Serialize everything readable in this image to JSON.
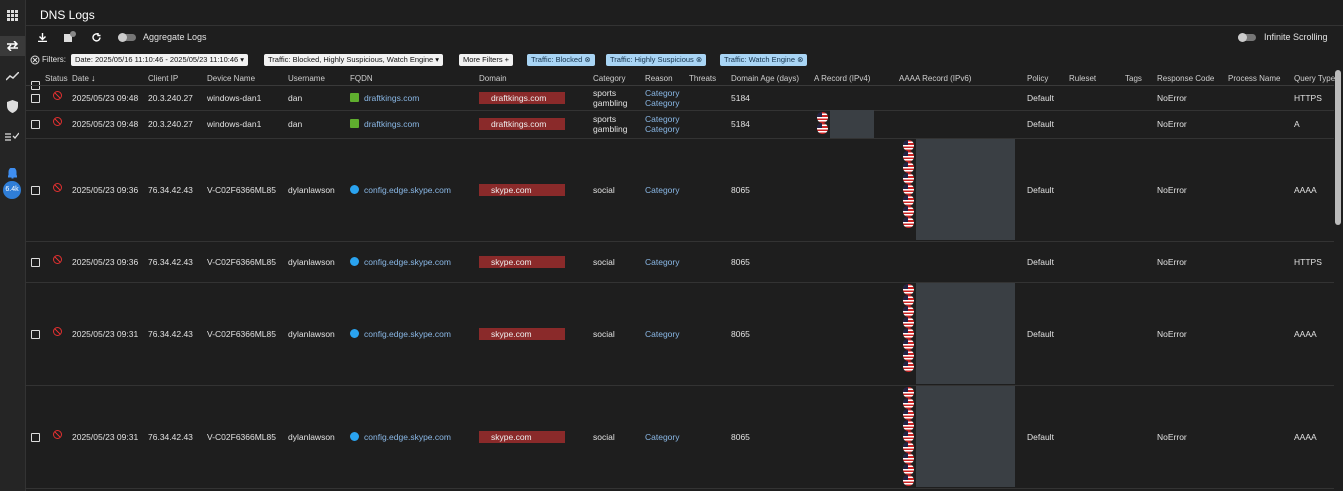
{
  "sidebar": {
    "badge": "6.4k"
  },
  "header": {
    "title": "DNS Logs"
  },
  "toolbar": {
    "aggregate": "Aggregate Logs",
    "infinite": "Infinite Scrolling"
  },
  "filters": {
    "label": "Filters:",
    "dropdowns": [
      "Date: 2025/05/16 11:10:46 - 2025/05/23 11:10:46",
      "Traffic: Blocked, Highly Suspicious, Watch Engine"
    ],
    "more": "More Filters +",
    "chips": [
      "Traffic: Blocked",
      "Traffic: Highly Suspicious",
      "Traffic: Watch Engine"
    ]
  },
  "table": {
    "columns": [
      "Status",
      "Date",
      "Client IP",
      "Device Name",
      "Username",
      "FQDN",
      "Domain",
      "Category",
      "Reason",
      "Threats",
      "Domain Age (days)",
      "A Record (IPv4)",
      "AAAA Record (IPv6)",
      "Policy",
      "Ruleset",
      "Tags",
      "Response Code",
      "Process Name",
      "Query Type"
    ],
    "rows": [
      {
        "date": "2025/05/23 09:48",
        "client_ip": "20.3.240.27",
        "device": "windows-dan1",
        "username": "dan",
        "fqdn": "draftkings.com",
        "domain": "draftkings.com",
        "category": [
          "sports",
          "gambling"
        ],
        "reason": [
          "Category",
          "Category"
        ],
        "domain_age": "5184",
        "policy": "Default",
        "response_code": "NoError",
        "query_type": "HTTPS"
      },
      {
        "date": "2025/05/23 09:48",
        "client_ip": "20.3.240.27",
        "device": "windows-dan1",
        "username": "dan",
        "fqdn": "draftkings.com",
        "domain": "draftkings.com",
        "category": [
          "sports",
          "gambling"
        ],
        "reason": [
          "Category",
          "Category"
        ],
        "domain_age": "5184",
        "policy": "Default",
        "response_code": "NoError",
        "query_type": "A"
      },
      {
        "date": "2025/05/23 09:36",
        "client_ip": "76.34.42.43",
        "device": "V-C02F6366ML85",
        "username": "dylanlawson",
        "fqdn": "config.edge.skype.com",
        "domain": "skype.com",
        "category": [
          "social"
        ],
        "reason": [
          "Category"
        ],
        "domain_age": "8065",
        "policy": "Default",
        "response_code": "NoError",
        "query_type": "AAAA"
      },
      {
        "date": "2025/05/23 09:36",
        "client_ip": "76.34.42.43",
        "device": "V-C02F6366ML85",
        "username": "dylanlawson",
        "fqdn": "config.edge.skype.com",
        "domain": "skype.com",
        "category": [
          "social"
        ],
        "reason": [
          "Category"
        ],
        "domain_age": "8065",
        "policy": "Default",
        "response_code": "NoError",
        "query_type": "HTTPS"
      },
      {
        "date": "2025/05/23 09:31",
        "client_ip": "76.34.42.43",
        "device": "V-C02F6366ML85",
        "username": "dylanlawson",
        "fqdn": "config.edge.skype.com",
        "domain": "skype.com",
        "category": [
          "social"
        ],
        "reason": [
          "Category"
        ],
        "domain_age": "8065",
        "policy": "Default",
        "response_code": "NoError",
        "query_type": "AAAA"
      },
      {
        "date": "2025/05/23 09:31",
        "client_ip": "76.34.42.43",
        "device": "V-C02F6366ML85",
        "username": "dylanlawson",
        "fqdn": "config.edge.skype.com",
        "domain": "skype.com",
        "category": [
          "social"
        ],
        "reason": [
          "Category"
        ],
        "domain_age": "8065",
        "policy": "Default",
        "response_code": "NoError",
        "query_type": "AAAA"
      }
    ]
  }
}
